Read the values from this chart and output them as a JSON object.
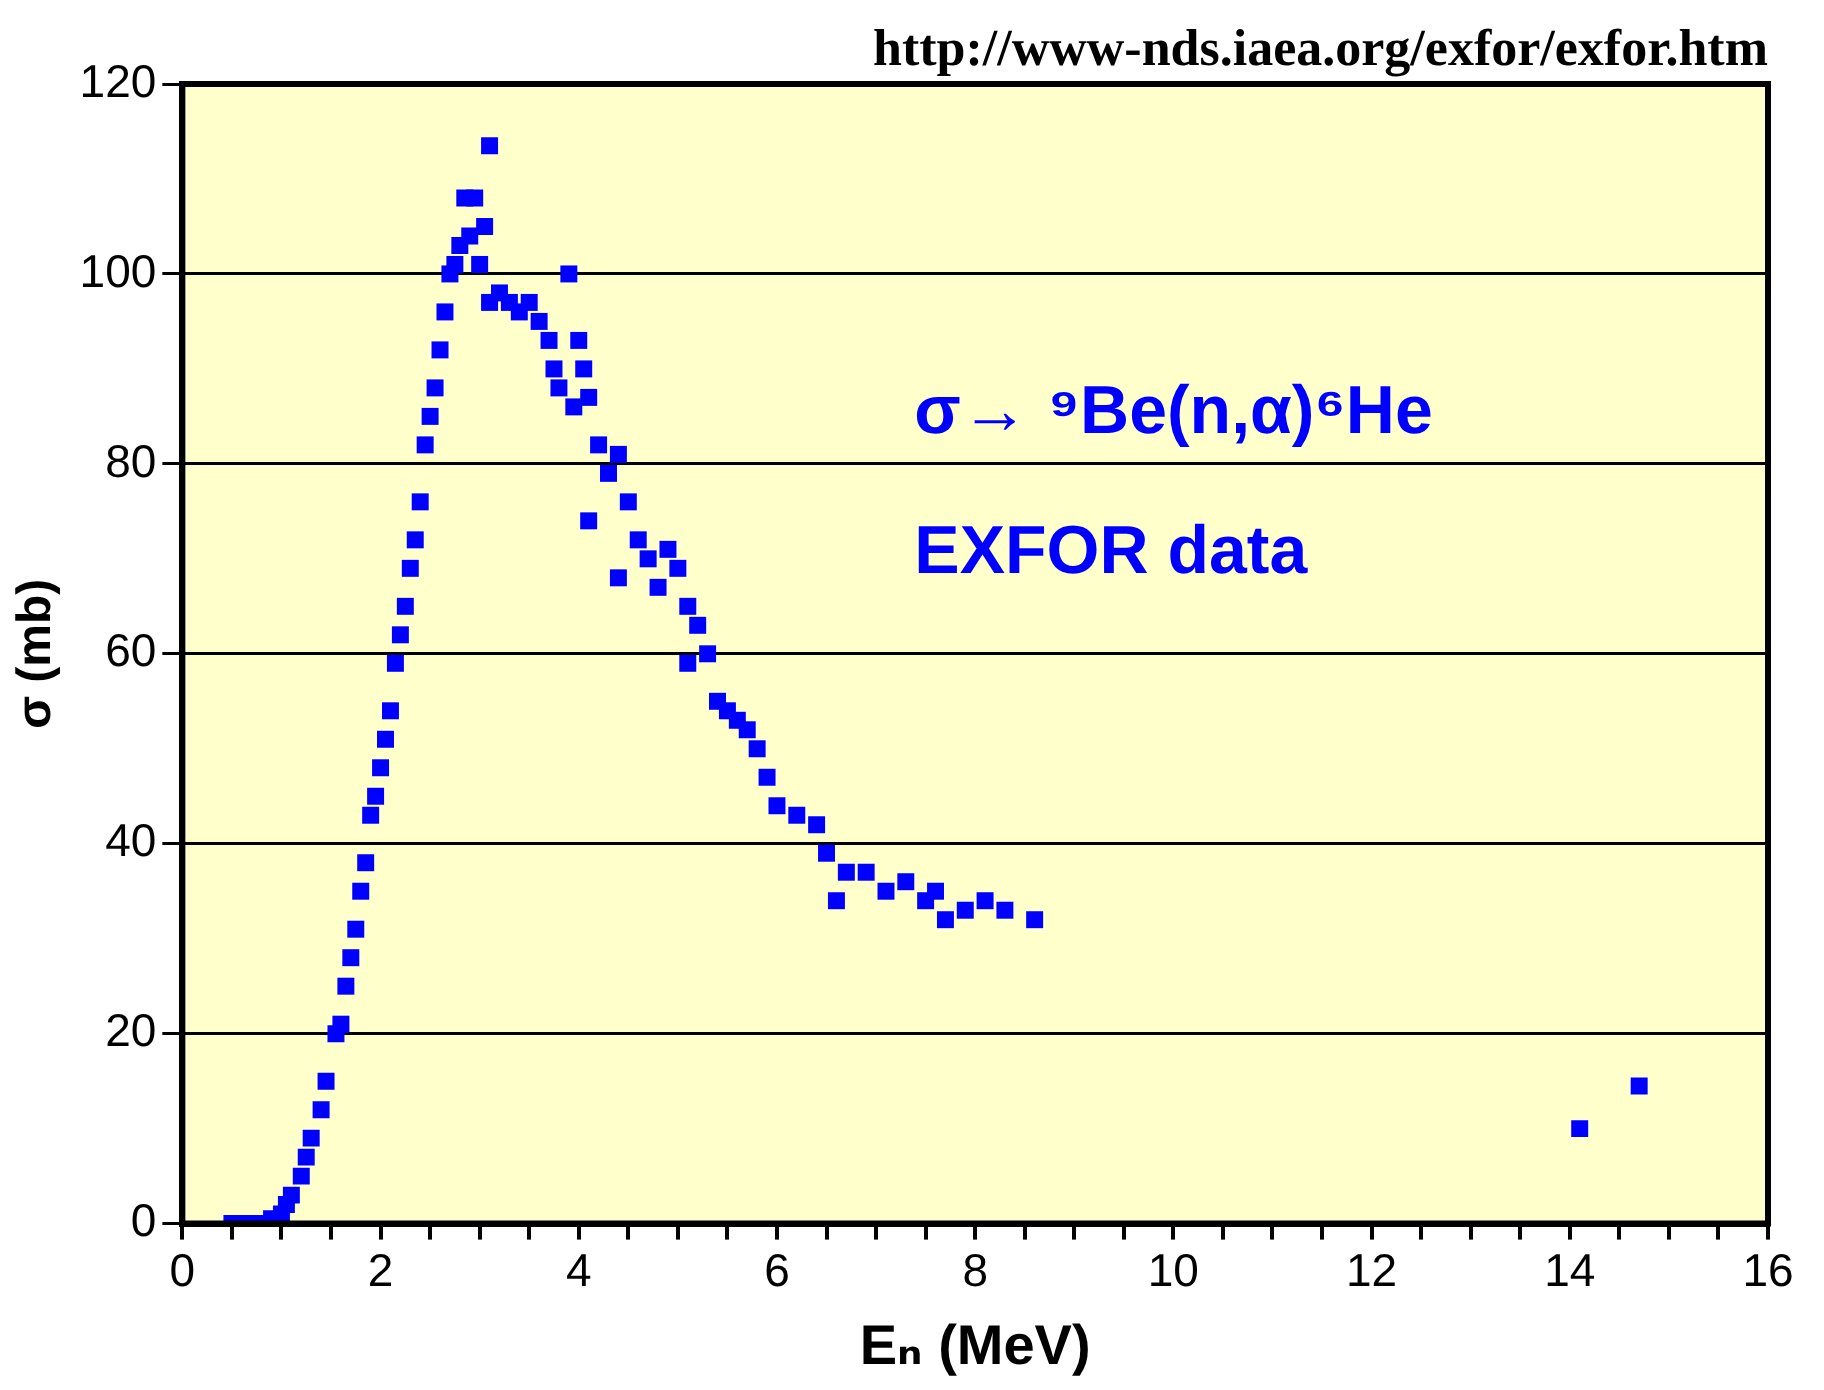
{
  "chart_data": {
    "type": "scatter",
    "xlabel": "Eₙ (MeV)",
    "ylabel": "σ (mb)",
    "annotations": [
      "http://www-nds.iaea.org/exfor/exfor.htm",
      "σ→ ⁹Be(n,α)⁶He",
      "EXFOR data"
    ],
    "xlim": [
      0,
      16
    ],
    "ylim": [
      0,
      120
    ],
    "xticks": [
      0,
      {
        "value": 0.5,
        "label": null
      },
      {
        "value": 1,
        "label": null
      },
      {
        "value": 1.5,
        "label": null
      },
      2,
      {
        "value": 2.5,
        "label": null
      },
      {
        "value": 3,
        "label": null
      },
      {
        "value": 3.5,
        "label": null
      },
      4,
      {
        "value": 4.5,
        "label": null
      },
      {
        "value": 5,
        "label": null
      },
      {
        "value": 5.5,
        "label": null
      },
      6,
      {
        "value": 6.5,
        "label": null
      },
      {
        "value": 7,
        "label": null
      },
      {
        "value": 7.5,
        "label": null
      },
      8,
      {
        "value": 8.5,
        "label": null
      },
      {
        "value": 9,
        "label": null
      },
      {
        "value": 9.5,
        "label": null
      },
      10,
      {
        "value": 10.5,
        "label": null
      },
      {
        "value": 11,
        "label": null
      },
      {
        "value": 11.5,
        "label": null
      },
      12,
      {
        "value": 12.5,
        "label": null
      },
      {
        "value": 13,
        "label": null
      },
      {
        "value": 13.5,
        "label": null
      },
      14,
      {
        "value": 14.5,
        "label": null
      },
      {
        "value": 15,
        "label": null
      },
      {
        "value": 15.5,
        "label": null
      },
      16
    ],
    "yticks": [
      0,
      20,
      40,
      60,
      80,
      100,
      120
    ],
    "grid": "y",
    "legend": false,
    "marker": "square",
    "series": [
      {
        "color": "#0000ff",
        "x": [
          0.5,
          0.6,
          0.7,
          0.8,
          0.9,
          1.0,
          1.05,
          1.1,
          1.2,
          1.25,
          1.3,
          1.4,
          1.45,
          1.55,
          1.6,
          1.65,
          1.7,
          1.75,
          1.8,
          1.85,
          1.9,
          1.95,
          2.0,
          2.05,
          2.1,
          2.15,
          2.2,
          2.25,
          2.3,
          2.35,
          2.4,
          2.45,
          2.5,
          2.55,
          2.6,
          2.65,
          2.7,
          2.75,
          2.8,
          2.85,
          2.9,
          2.95,
          3.0,
          3.05,
          3.1,
          3.1,
          3.2,
          3.3,
          3.4,
          3.5,
          3.6,
          3.7,
          3.75,
          3.8,
          3.9,
          3.95,
          4.0,
          4.05,
          4.1,
          4.1,
          4.2,
          4.3,
          4.4,
          4.4,
          4.5,
          4.6,
          4.7,
          4.8,
          4.9,
          5.0,
          5.1,
          5.1,
          5.2,
          5.3,
          5.4,
          5.5,
          5.6,
          5.7,
          5.8,
          5.9,
          6.0,
          6.2,
          6.4,
          6.5,
          6.6,
          6.7,
          6.9,
          7.1,
          7.3,
          7.5,
          7.6,
          7.7,
          7.9,
          8.1,
          8.3,
          8.6,
          14.1,
          14.7
        ],
        "values": [
          0,
          0,
          0,
          0,
          0.5,
          1,
          2,
          3,
          5,
          7,
          9,
          12,
          15,
          20,
          21,
          25,
          28,
          31,
          35,
          38,
          43,
          45,
          48,
          51,
          54,
          59,
          62,
          65,
          69,
          72,
          76,
          82,
          85,
          88,
          92,
          96,
          100,
          101,
          103,
          108,
          104,
          108,
          101,
          105,
          113.5,
          97,
          98,
          97,
          96,
          97,
          95,
          93,
          90,
          88,
          100,
          86,
          93,
          90,
          87,
          74,
          82,
          79,
          81,
          68,
          76,
          72,
          70,
          67,
          71,
          69,
          65,
          59,
          63,
          60,
          55,
          54,
          53,
          52,
          50,
          47,
          44,
          43,
          42,
          39,
          34,
          37,
          37,
          35,
          36,
          34,
          35,
          32,
          33,
          34,
          33,
          32,
          10,
          14.5
        ]
      }
    ]
  }
}
